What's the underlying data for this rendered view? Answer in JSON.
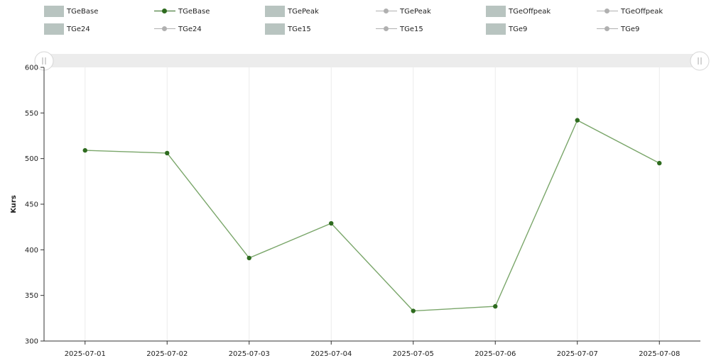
{
  "legend": {
    "items": [
      {
        "label": "TGeBase",
        "kind": "box",
        "color": "#b8c4c0"
      },
      {
        "label": "TGeBase",
        "kind": "line",
        "color": "#2e6b1f",
        "active": true
      },
      {
        "label": "TGePeak",
        "kind": "box",
        "color": "#b8c4c0"
      },
      {
        "label": "TGePeak",
        "kind": "line",
        "color": "#b0b0b0",
        "active": false
      },
      {
        "label": "TGeOffpeak",
        "kind": "box",
        "color": "#b8c4c0"
      },
      {
        "label": "TGeOffpeak",
        "kind": "line",
        "color": "#b0b0b0",
        "active": false
      },
      {
        "label": "TGe24",
        "kind": "box",
        "color": "#b8c4c0"
      },
      {
        "label": "TGe24",
        "kind": "line",
        "color": "#b0b0b0",
        "active": false
      },
      {
        "label": "TGe15",
        "kind": "box",
        "color": "#b8c4c0"
      },
      {
        "label": "TGe15",
        "kind": "line",
        "color": "#b0b0b0",
        "active": false
      },
      {
        "label": "TGe9",
        "kind": "box",
        "color": "#b8c4c0"
      },
      {
        "label": "TGe9",
        "kind": "line",
        "color": "#b0b0b0",
        "active": false
      }
    ]
  },
  "colors": {
    "series_line": "#7aa66a",
    "series_marker": "#2e6b1f",
    "axis": "#333333",
    "grid": "#ececec",
    "slider_track": "#ececec"
  },
  "chart_data": {
    "type": "line",
    "title": "",
    "xlabel": "",
    "ylabel": "Kurs",
    "ylim": [
      300,
      600
    ],
    "yticks": [
      300,
      350,
      400,
      450,
      500,
      550,
      600
    ],
    "grid": "vertical",
    "legend_position": "top",
    "categories": [
      "2025-07-01",
      "2025-07-02",
      "2025-07-03",
      "2025-07-04",
      "2025-07-05",
      "2025-07-06",
      "2025-07-07",
      "2025-07-08"
    ],
    "series": [
      {
        "name": "TGeBase",
        "values": [
          509,
          506,
          391,
          429,
          333,
          338,
          542,
          495
        ]
      }
    ]
  }
}
